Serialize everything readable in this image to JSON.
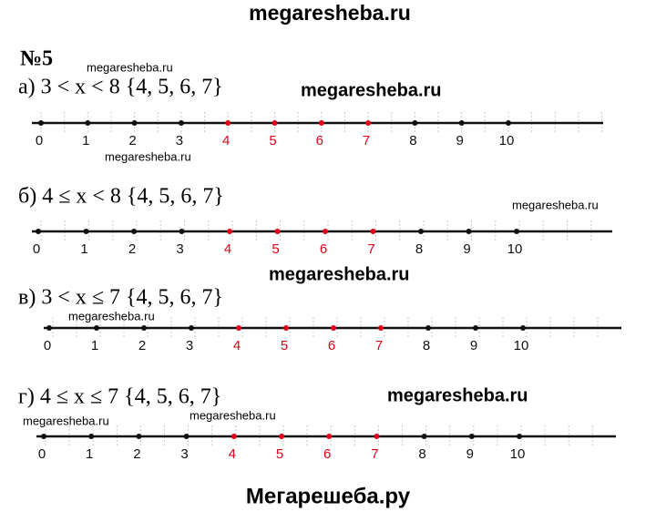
{
  "header": {
    "title": "megaresheba.ru"
  },
  "problem": {
    "number": "№5"
  },
  "items": [
    {
      "label": "а) 3 < x < 8 {4, 5, 6, 7}",
      "ticks": [
        {
          "text": "0",
          "red": false
        },
        {
          "text": "1",
          "red": false
        },
        {
          "text": "2",
          "red": false
        },
        {
          "text": "3",
          "red": false
        },
        {
          "text": "4",
          "red": true
        },
        {
          "text": "5",
          "red": true
        },
        {
          "text": "6",
          "red": true
        },
        {
          "text": "7",
          "red": true
        },
        {
          "text": "8",
          "red": false
        },
        {
          "text": "9",
          "red": false
        },
        {
          "text": "10",
          "red": false
        }
      ]
    },
    {
      "label": "б) 4 ≤ x < 8 {4, 5, 6, 7}",
      "ticks": [
        {
          "text": "0",
          "red": false
        },
        {
          "text": "1",
          "red": false
        },
        {
          "text": "2",
          "red": false
        },
        {
          "text": "3",
          "red": false
        },
        {
          "text": "4",
          "red": true
        },
        {
          "text": "5",
          "red": true
        },
        {
          "text": "6",
          "red": true
        },
        {
          "text": "7",
          "red": true
        },
        {
          "text": "8",
          "red": false
        },
        {
          "text": "9",
          "red": false
        },
        {
          "text": "10",
          "red": false
        }
      ]
    },
    {
      "label": "в) 3 < x ≤ 7 {4, 5, 6, 7}",
      "ticks": [
        {
          "text": "0",
          "red": false
        },
        {
          "text": "1",
          "red": false
        },
        {
          "text": "2",
          "red": false
        },
        {
          "text": "3",
          "red": false
        },
        {
          "text": "4",
          "red": true
        },
        {
          "text": "5",
          "red": true
        },
        {
          "text": "6",
          "red": true
        },
        {
          "text": "7",
          "red": true
        },
        {
          "text": "8",
          "red": false
        },
        {
          "text": "9",
          "red": false
        },
        {
          "text": "10",
          "red": false
        }
      ]
    },
    {
      "label": "г) 4 ≤ x ≤ 7 {4, 5, 6, 7}",
      "ticks": [
        {
          "text": "0",
          "red": false
        },
        {
          "text": "1",
          "red": false
        },
        {
          "text": "2",
          "red": false
        },
        {
          "text": "3",
          "red": false
        },
        {
          "text": "4",
          "red": true
        },
        {
          "text": "5",
          "red": true
        },
        {
          "text": "6",
          "red": true
        },
        {
          "text": "7",
          "red": true
        },
        {
          "text": "8",
          "red": false
        },
        {
          "text": "9",
          "red": false
        },
        {
          "text": "10",
          "red": false
        }
      ]
    }
  ],
  "highlight_color": "#e0001a",
  "watermarks": [
    "megaresheba.ru",
    "megaresheba.ru",
    "megaresheba.ru",
    "megaresheba.ru",
    "megaresheba.ru",
    "megaresheba.ru",
    "megaresheba.ru",
    "megaresheba.ru",
    "megaresheba.ru"
  ],
  "footer": {
    "text": "Мегарешеба.ру"
  }
}
